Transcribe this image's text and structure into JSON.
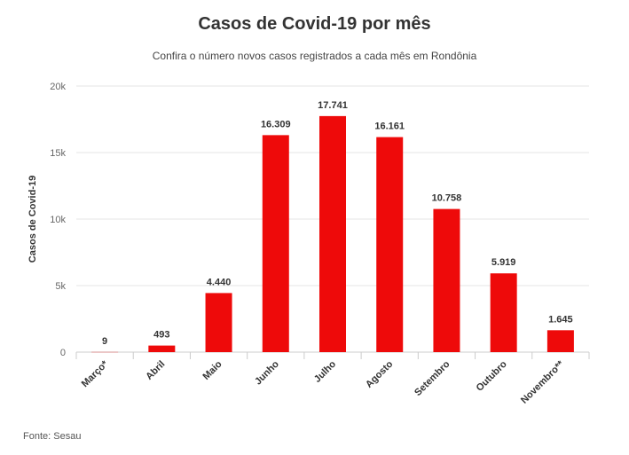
{
  "chart_data": {
    "type": "bar",
    "title": "Casos de Covid-19 por mês",
    "subtitle": "Confira o número novos casos registrados a cada mês em Rondônia",
    "ylabel": "Casos de Covid-19",
    "xlabel": "",
    "ylim": [
      0,
      20000
    ],
    "yticks": [
      0,
      5000,
      10000,
      15000,
      20000
    ],
    "ytick_labels": [
      "0",
      "5k",
      "10k",
      "15k",
      "20k"
    ],
    "grid": true,
    "categories": [
      "Março*",
      "Abril",
      "Maio",
      "Junho",
      "Julho",
      "Agosto",
      "Setembro",
      "Outubro",
      "Novembro**"
    ],
    "values": [
      9,
      493,
      4440,
      16309,
      17741,
      16161,
      10758,
      5919,
      1645
    ],
    "data_labels": [
      "9",
      "493",
      "4.440",
      "16.309",
      "17.741",
      "16.161",
      "10.758",
      "5.919",
      "1.645"
    ],
    "bar_color": "#ee0a0a",
    "source": "Fonte: Sesau"
  }
}
